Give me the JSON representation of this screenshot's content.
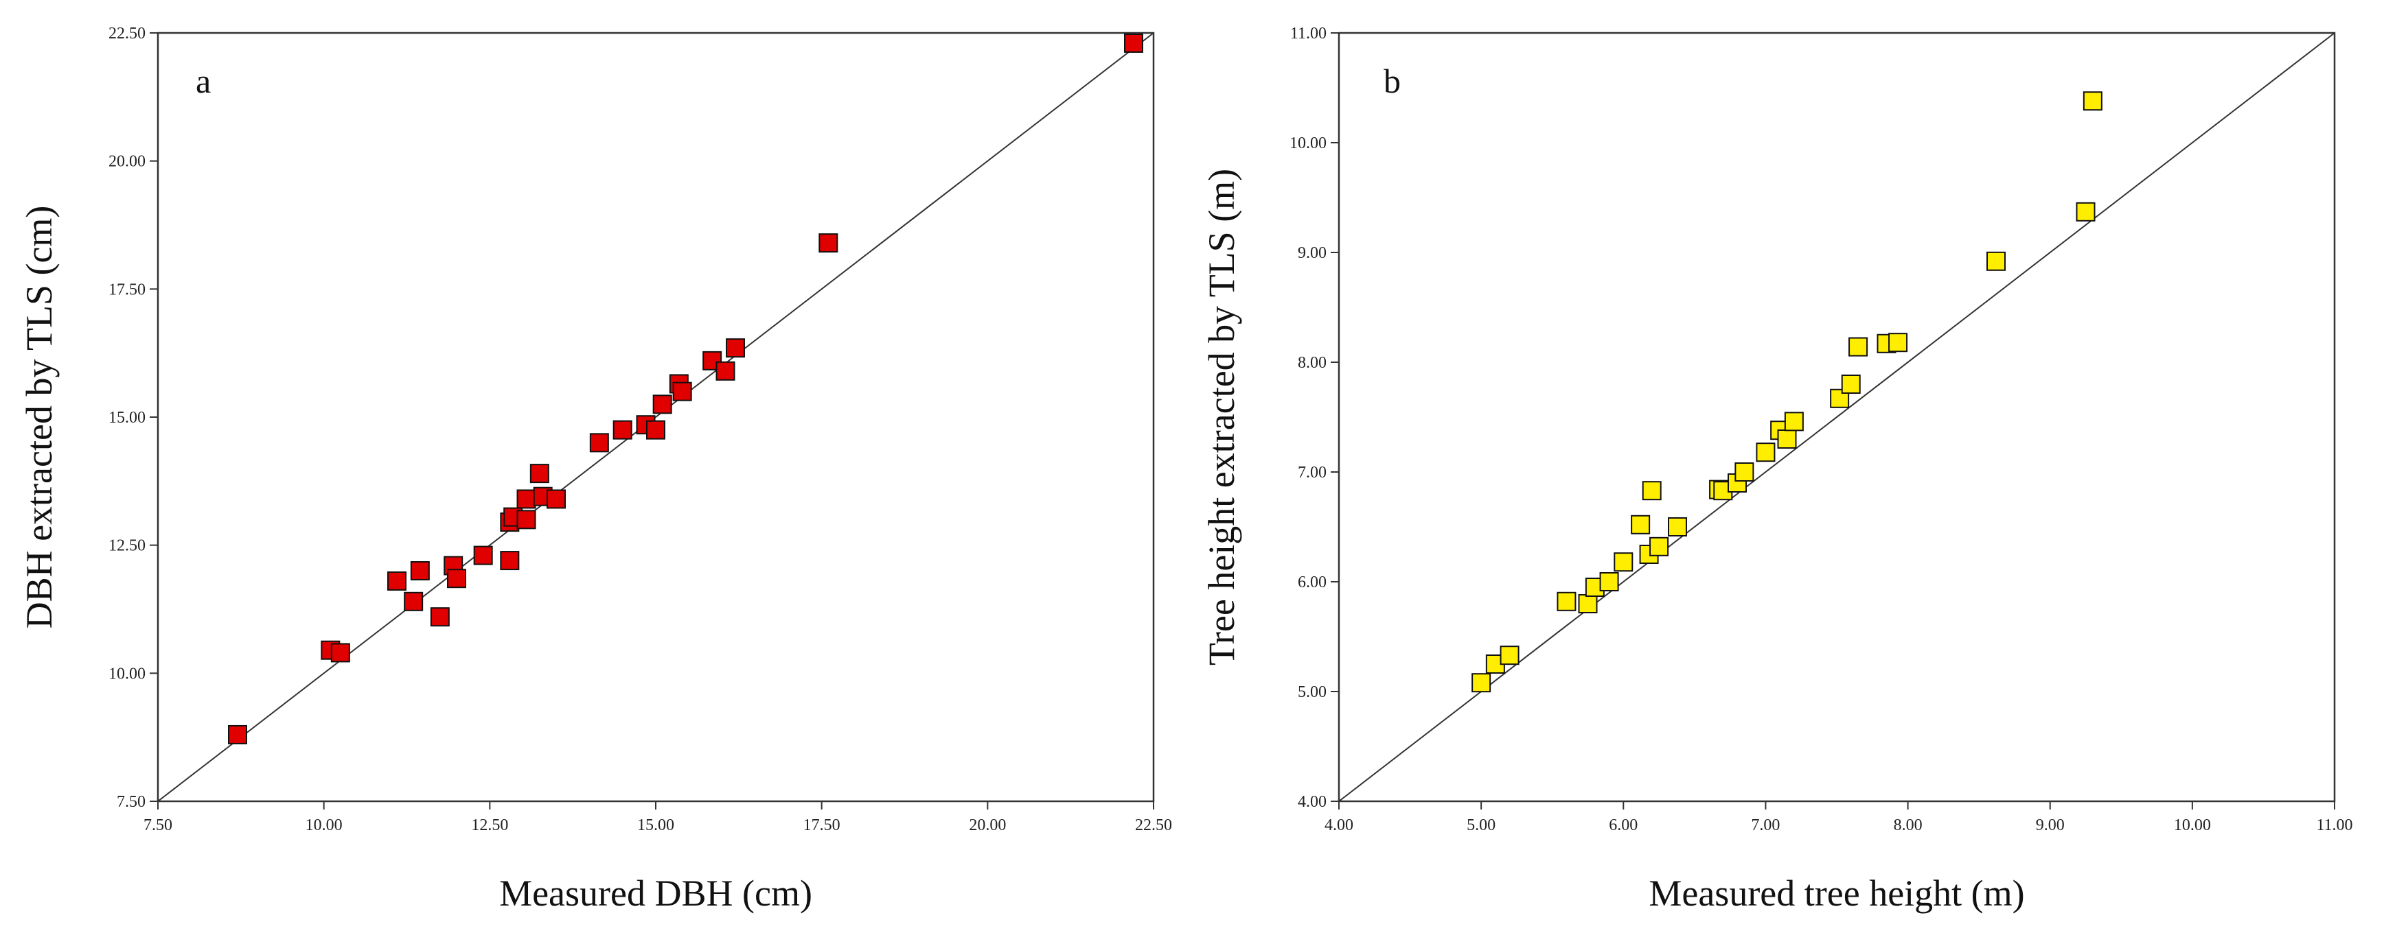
{
  "chart_data": [
    {
      "type": "scatter",
      "panel_label": "a",
      "xlabel": "Measured DBH (cm)",
      "ylabel": "DBH extracted by TLS (cm)",
      "xlim": [
        7.5,
        22.5
      ],
      "ylim": [
        7.5,
        22.5
      ],
      "xticks": [
        "7.50",
        "10.00",
        "12.50",
        "15.00",
        "17.50",
        "20.00",
        "22.50"
      ],
      "yticks": [
        "7.50",
        "10.00",
        "12.50",
        "15.00",
        "17.50",
        "20.00",
        "22.50"
      ],
      "reference_line": "1:1",
      "marker": "square",
      "marker_color": "#e00000",
      "points": [
        [
          8.7,
          8.8
        ],
        [
          10.1,
          10.45
        ],
        [
          10.25,
          10.4
        ],
        [
          11.1,
          11.8
        ],
        [
          11.35,
          11.4
        ],
        [
          11.45,
          12.0
        ],
        [
          11.75,
          11.1
        ],
        [
          11.95,
          12.1
        ],
        [
          12.0,
          11.85
        ],
        [
          12.4,
          12.3
        ],
        [
          12.8,
          12.2
        ],
        [
          12.8,
          12.95
        ],
        [
          12.85,
          13.05
        ],
        [
          13.05,
          13.0
        ],
        [
          13.05,
          13.4
        ],
        [
          13.25,
          13.9
        ],
        [
          13.3,
          13.45
        ],
        [
          13.5,
          13.4
        ],
        [
          14.15,
          14.5
        ],
        [
          14.5,
          14.75
        ],
        [
          14.85,
          14.85
        ],
        [
          15.0,
          14.75
        ],
        [
          15.1,
          15.25
        ],
        [
          15.35,
          15.65
        ],
        [
          15.4,
          15.5
        ],
        [
          15.85,
          16.1
        ],
        [
          16.05,
          15.9
        ],
        [
          16.2,
          16.35
        ],
        [
          17.6,
          18.4
        ],
        [
          22.2,
          22.3
        ]
      ]
    },
    {
      "type": "scatter",
      "panel_label": "b",
      "xlabel": "Measured tree height (m)",
      "ylabel": "Tree height  extracted by TLS (m)",
      "xlim": [
        4.0,
        11.0
      ],
      "ylim": [
        4.0,
        11.0
      ],
      "xticks": [
        "4.00",
        "5.00",
        "6.00",
        "7.00",
        "8.00",
        "9.00",
        "10.00",
        "11.00"
      ],
      "yticks": [
        "4.00",
        "5.00",
        "6.00",
        "7.00",
        "8.00",
        "9.00",
        "10.00",
        "11.00"
      ],
      "reference_line": "1:1",
      "marker": "square",
      "marker_color": "#ffee00",
      "points": [
        [
          5.0,
          5.08
        ],
        [
          5.1,
          5.25
        ],
        [
          5.2,
          5.33
        ],
        [
          5.6,
          5.82
        ],
        [
          5.75,
          5.8
        ],
        [
          5.8,
          5.95
        ],
        [
          5.9,
          6.0
        ],
        [
          6.0,
          6.18
        ],
        [
          6.12,
          6.52
        ],
        [
          6.2,
          6.83
        ],
        [
          6.18,
          6.25
        ],
        [
          6.25,
          6.32
        ],
        [
          6.38,
          6.5
        ],
        [
          6.67,
          6.84
        ],
        [
          6.7,
          6.83
        ],
        [
          6.8,
          6.9
        ],
        [
          6.85,
          7.0
        ],
        [
          7.0,
          7.18
        ],
        [
          7.1,
          7.38
        ],
        [
          7.15,
          7.3
        ],
        [
          7.2,
          7.46
        ],
        [
          7.52,
          7.67
        ],
        [
          7.6,
          7.8
        ],
        [
          7.65,
          8.14
        ],
        [
          7.85,
          8.17
        ],
        [
          7.93,
          8.18
        ],
        [
          8.62,
          8.92
        ],
        [
          9.25,
          9.37
        ],
        [
          9.3,
          10.38
        ]
      ]
    }
  ]
}
